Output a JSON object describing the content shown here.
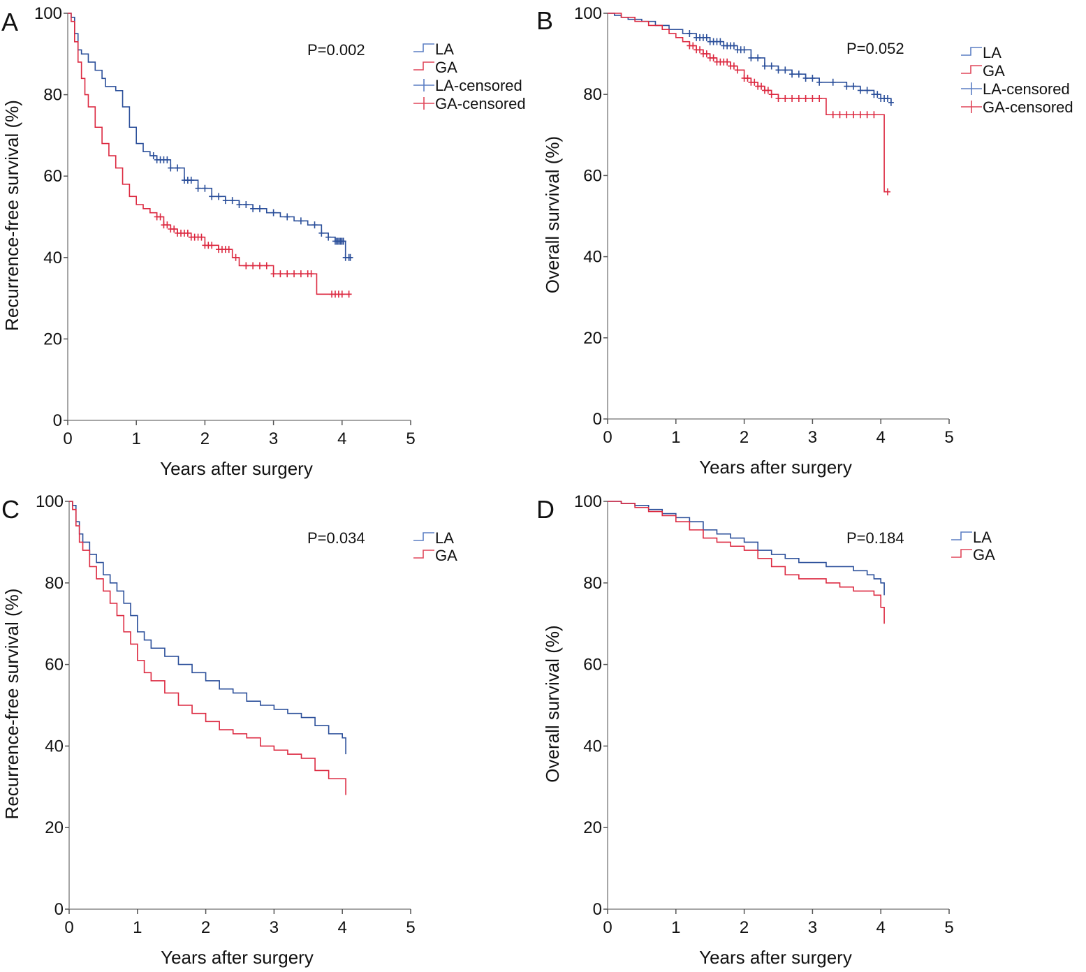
{
  "colors": {
    "LA": "#2b4f9a",
    "GA": "#dc2940",
    "LA_legend": "#5b7fc4",
    "GA_legend": "#e0475a"
  },
  "chart_data": [
    {
      "panel": "A",
      "type": "line",
      "xlabel": "Years after surgery",
      "ylabel": "Recurrence-free survival (%)",
      "xlim": [
        0,
        5
      ],
      "ylim": [
        0,
        100
      ],
      "xticks": [
        "0",
        "1",
        "2",
        "3",
        "4",
        "5"
      ],
      "yticks": [
        "0",
        "20",
        "40",
        "60",
        "80",
        "100"
      ],
      "pvalue": "P=0.002",
      "legend": [
        "LA",
        "GA",
        "LA-censored",
        "GA-censored"
      ],
      "legend_position": "top-right",
      "series": [
        {
          "name": "LA",
          "color_key": "LA",
          "x": [
            0,
            0.05,
            0.1,
            0.15,
            0.2,
            0.3,
            0.4,
            0.5,
            0.55,
            0.7,
            0.8,
            0.9,
            1.0,
            1.1,
            1.2,
            1.3,
            1.5,
            1.7,
            1.9,
            2.1,
            2.3,
            2.5,
            2.7,
            2.9,
            3.1,
            3.3,
            3.5,
            3.7,
            3.8,
            3.9,
            4.0,
            4.05,
            4.15
          ],
          "y": [
            100,
            99,
            95,
            91,
            90,
            88,
            86,
            84,
            82,
            81,
            77,
            72,
            68,
            66,
            65,
            64,
            62,
            59,
            57,
            55,
            54,
            53,
            52,
            51,
            50,
            49,
            48,
            46,
            45,
            44,
            44,
            40,
            40
          ],
          "censored_x": [
            1.25,
            1.3,
            1.35,
            1.4,
            1.45,
            1.5,
            1.6,
            1.7,
            1.75,
            1.8,
            1.9,
            2.0,
            2.1,
            2.2,
            2.3,
            2.4,
            2.5,
            2.6,
            2.7,
            2.8,
            3.0,
            3.2,
            3.4,
            3.6,
            3.7,
            3.8,
            3.9,
            3.92,
            3.94,
            3.96,
            3.98,
            4.0,
            4.02,
            4.05,
            4.1,
            4.12
          ]
        },
        {
          "name": "GA",
          "color_key": "GA",
          "x": [
            0,
            0.05,
            0.1,
            0.15,
            0.2,
            0.25,
            0.3,
            0.4,
            0.5,
            0.6,
            0.7,
            0.8,
            0.9,
            1.0,
            1.1,
            1.2,
            1.3,
            1.4,
            1.5,
            1.6,
            1.8,
            2.0,
            2.2,
            2.4,
            2.5,
            2.7,
            3.0,
            3.3,
            3.63,
            3.9,
            4.1
          ],
          "y": [
            100,
            98,
            93,
            88,
            84,
            80,
            77,
            72,
            68,
            65,
            62,
            58,
            55,
            53,
            52,
            51,
            50,
            48,
            47,
            46,
            45,
            43,
            42,
            40,
            38,
            38,
            36,
            36,
            31,
            31,
            31
          ],
          "censored_x": [
            1.3,
            1.35,
            1.4,
            1.45,
            1.5,
            1.55,
            1.6,
            1.65,
            1.7,
            1.75,
            1.8,
            1.85,
            1.9,
            1.95,
            2.0,
            2.05,
            2.1,
            2.2,
            2.25,
            2.3,
            2.35,
            2.45,
            2.6,
            2.7,
            2.8,
            2.9,
            3.0,
            3.1,
            3.2,
            3.3,
            3.4,
            3.5,
            3.55,
            3.85,
            3.9,
            3.95,
            4.0,
            4.1
          ]
        }
      ]
    },
    {
      "panel": "B",
      "type": "line",
      "xlabel": "Years after surgery",
      "ylabel": "Overall survival (%)",
      "xlim": [
        0,
        5
      ],
      "ylim": [
        0,
        100
      ],
      "xticks": [
        "0",
        "1",
        "2",
        "3",
        "4",
        "5"
      ],
      "yticks": [
        "0",
        "20",
        "40",
        "60",
        "80",
        "100"
      ],
      "pvalue": "P=0.052",
      "legend": [
        "LA",
        "GA",
        "LA-censored",
        "GA-censored"
      ],
      "legend_position": "top-right",
      "series": [
        {
          "name": "LA",
          "color_key": "LA",
          "x": [
            0,
            0.1,
            0.2,
            0.3,
            0.5,
            0.7,
            0.9,
            1.1,
            1.3,
            1.5,
            1.7,
            1.9,
            2.1,
            2.3,
            2.5,
            2.7,
            2.9,
            3.1,
            3.3,
            3.5,
            3.7,
            3.9,
            4.0,
            4.15
          ],
          "y": [
            100,
            99.5,
            99,
            98.5,
            98,
            97,
            96,
            95,
            94,
            93,
            92,
            91,
            89,
            87,
            86,
            85,
            84,
            83,
            83,
            82,
            81,
            80,
            79,
            78
          ],
          "censored_x": [
            1.2,
            1.3,
            1.35,
            1.4,
            1.45,
            1.5,
            1.55,
            1.6,
            1.65,
            1.7,
            1.75,
            1.8,
            1.85,
            1.9,
            1.95,
            2.0,
            2.1,
            2.2,
            2.3,
            2.4,
            2.5,
            2.6,
            2.7,
            2.8,
            2.9,
            3.0,
            3.1,
            3.3,
            3.5,
            3.6,
            3.7,
            3.8,
            3.9,
            3.95,
            4.0,
            4.05,
            4.1,
            4.15
          ]
        },
        {
          "name": "GA",
          "color_key": "GA",
          "x": [
            0,
            0.1,
            0.2,
            0.4,
            0.6,
            0.8,
            0.9,
            1.0,
            1.1,
            1.2,
            1.3,
            1.4,
            1.5,
            1.6,
            1.7,
            1.8,
            1.9,
            2.0,
            2.1,
            2.2,
            2.3,
            2.4,
            2.5,
            2.6,
            3.0,
            3.2,
            3.5,
            3.9,
            4.05,
            4.1
          ],
          "y": [
            100,
            100,
            99,
            98,
            97,
            96,
            95,
            94,
            93,
            92,
            91,
            90,
            89,
            88,
            88,
            87,
            86,
            84,
            83,
            82,
            81,
            80,
            79,
            79,
            79,
            75,
            75,
            75,
            56,
            56
          ],
          "censored_x": [
            1.2,
            1.25,
            1.3,
            1.35,
            1.4,
            1.45,
            1.5,
            1.55,
            1.6,
            1.65,
            1.7,
            1.75,
            1.8,
            1.85,
            1.9,
            2.0,
            2.05,
            2.1,
            2.15,
            2.2,
            2.25,
            2.3,
            2.35,
            2.4,
            2.5,
            2.6,
            2.7,
            2.8,
            2.9,
            3.0,
            3.1,
            3.3,
            3.4,
            3.5,
            3.6,
            3.7,
            3.8,
            3.9,
            4.1
          ]
        }
      ]
    },
    {
      "panel": "C",
      "type": "line",
      "xlabel": "Years after surgery",
      "ylabel": "Recurrence-free survival (%)",
      "xlim": [
        0,
        5
      ],
      "ylim": [
        0,
        100
      ],
      "xticks": [
        "0",
        "1",
        "2",
        "3",
        "4",
        "5"
      ],
      "yticks": [
        "0",
        "20",
        "40",
        "60",
        "80",
        "100"
      ],
      "pvalue": "P=0.034",
      "legend": [
        "LA",
        "GA"
      ],
      "legend_position": "top-right",
      "series": [
        {
          "name": "LA",
          "color_key": "LA",
          "x": [
            0,
            0.05,
            0.1,
            0.15,
            0.2,
            0.3,
            0.4,
            0.5,
            0.6,
            0.7,
            0.8,
            0.9,
            1.0,
            1.1,
            1.2,
            1.4,
            1.6,
            1.8,
            2.0,
            2.2,
            2.4,
            2.6,
            2.8,
            3.0,
            3.2,
            3.4,
            3.6,
            3.8,
            4.0,
            4.05
          ],
          "y": [
            100,
            99,
            95,
            92,
            90,
            87,
            85,
            82,
            80,
            78,
            75,
            72,
            68,
            66,
            64,
            62,
            60,
            58,
            56,
            54,
            53,
            51,
            50,
            49,
            48,
            47,
            45,
            43,
            42,
            38
          ],
          "censored_x": []
        },
        {
          "name": "GA",
          "color_key": "GA",
          "x": [
            0,
            0.05,
            0.1,
            0.15,
            0.2,
            0.3,
            0.4,
            0.5,
            0.6,
            0.7,
            0.8,
            0.9,
            1.0,
            1.1,
            1.2,
            1.4,
            1.6,
            1.8,
            2.0,
            2.2,
            2.4,
            2.6,
            2.8,
            3.0,
            3.2,
            3.4,
            3.6,
            3.8,
            4.0,
            4.05
          ],
          "y": [
            100,
            98,
            94,
            90,
            88,
            84,
            81,
            78,
            75,
            72,
            68,
            65,
            61,
            58,
            56,
            53,
            50,
            48,
            46,
            44,
            43,
            42,
            40,
            39,
            38,
            37,
            34,
            32,
            32,
            28
          ],
          "censored_x": []
        }
      ]
    },
    {
      "panel": "D",
      "type": "line",
      "xlabel": "Years after surgery",
      "ylabel": "Overall survival (%)",
      "xlim": [
        0,
        5
      ],
      "ylim": [
        0,
        100
      ],
      "xticks": [
        "0",
        "1",
        "2",
        "3",
        "4",
        "5"
      ],
      "yticks": [
        "0",
        "20",
        "40",
        "60",
        "80",
        "100"
      ],
      "pvalue": "P=0.184",
      "legend": [
        "LA",
        "GA"
      ],
      "legend_position": "top-right",
      "series": [
        {
          "name": "LA",
          "color_key": "LA",
          "x": [
            0,
            0.2,
            0.4,
            0.6,
            0.8,
            1.0,
            1.2,
            1.4,
            1.6,
            1.8,
            2.0,
            2.2,
            2.4,
            2.6,
            2.8,
            3.0,
            3.2,
            3.4,
            3.6,
            3.8,
            3.9,
            4.0,
            4.05
          ],
          "y": [
            100,
            99.5,
            99,
            98,
            97,
            96,
            95,
            93,
            92,
            91,
            90,
            88,
            87,
            86,
            85,
            85,
            84,
            84,
            83,
            82,
            81,
            80,
            77
          ],
          "censored_x": []
        },
        {
          "name": "GA",
          "color_key": "GA",
          "x": [
            0,
            0.2,
            0.4,
            0.6,
            0.8,
            1.0,
            1.2,
            1.4,
            1.6,
            1.8,
            2.0,
            2.2,
            2.4,
            2.6,
            2.8,
            3.0,
            3.2,
            3.4,
            3.6,
            3.8,
            3.9,
            4.0,
            4.05
          ],
          "y": [
            100,
            99.5,
            98.5,
            97.5,
            96.5,
            95,
            93,
            91,
            90,
            89,
            88,
            86,
            84,
            82,
            81,
            81,
            80,
            79,
            78,
            78,
            77,
            74,
            70
          ],
          "censored_x": []
        }
      ]
    }
  ]
}
